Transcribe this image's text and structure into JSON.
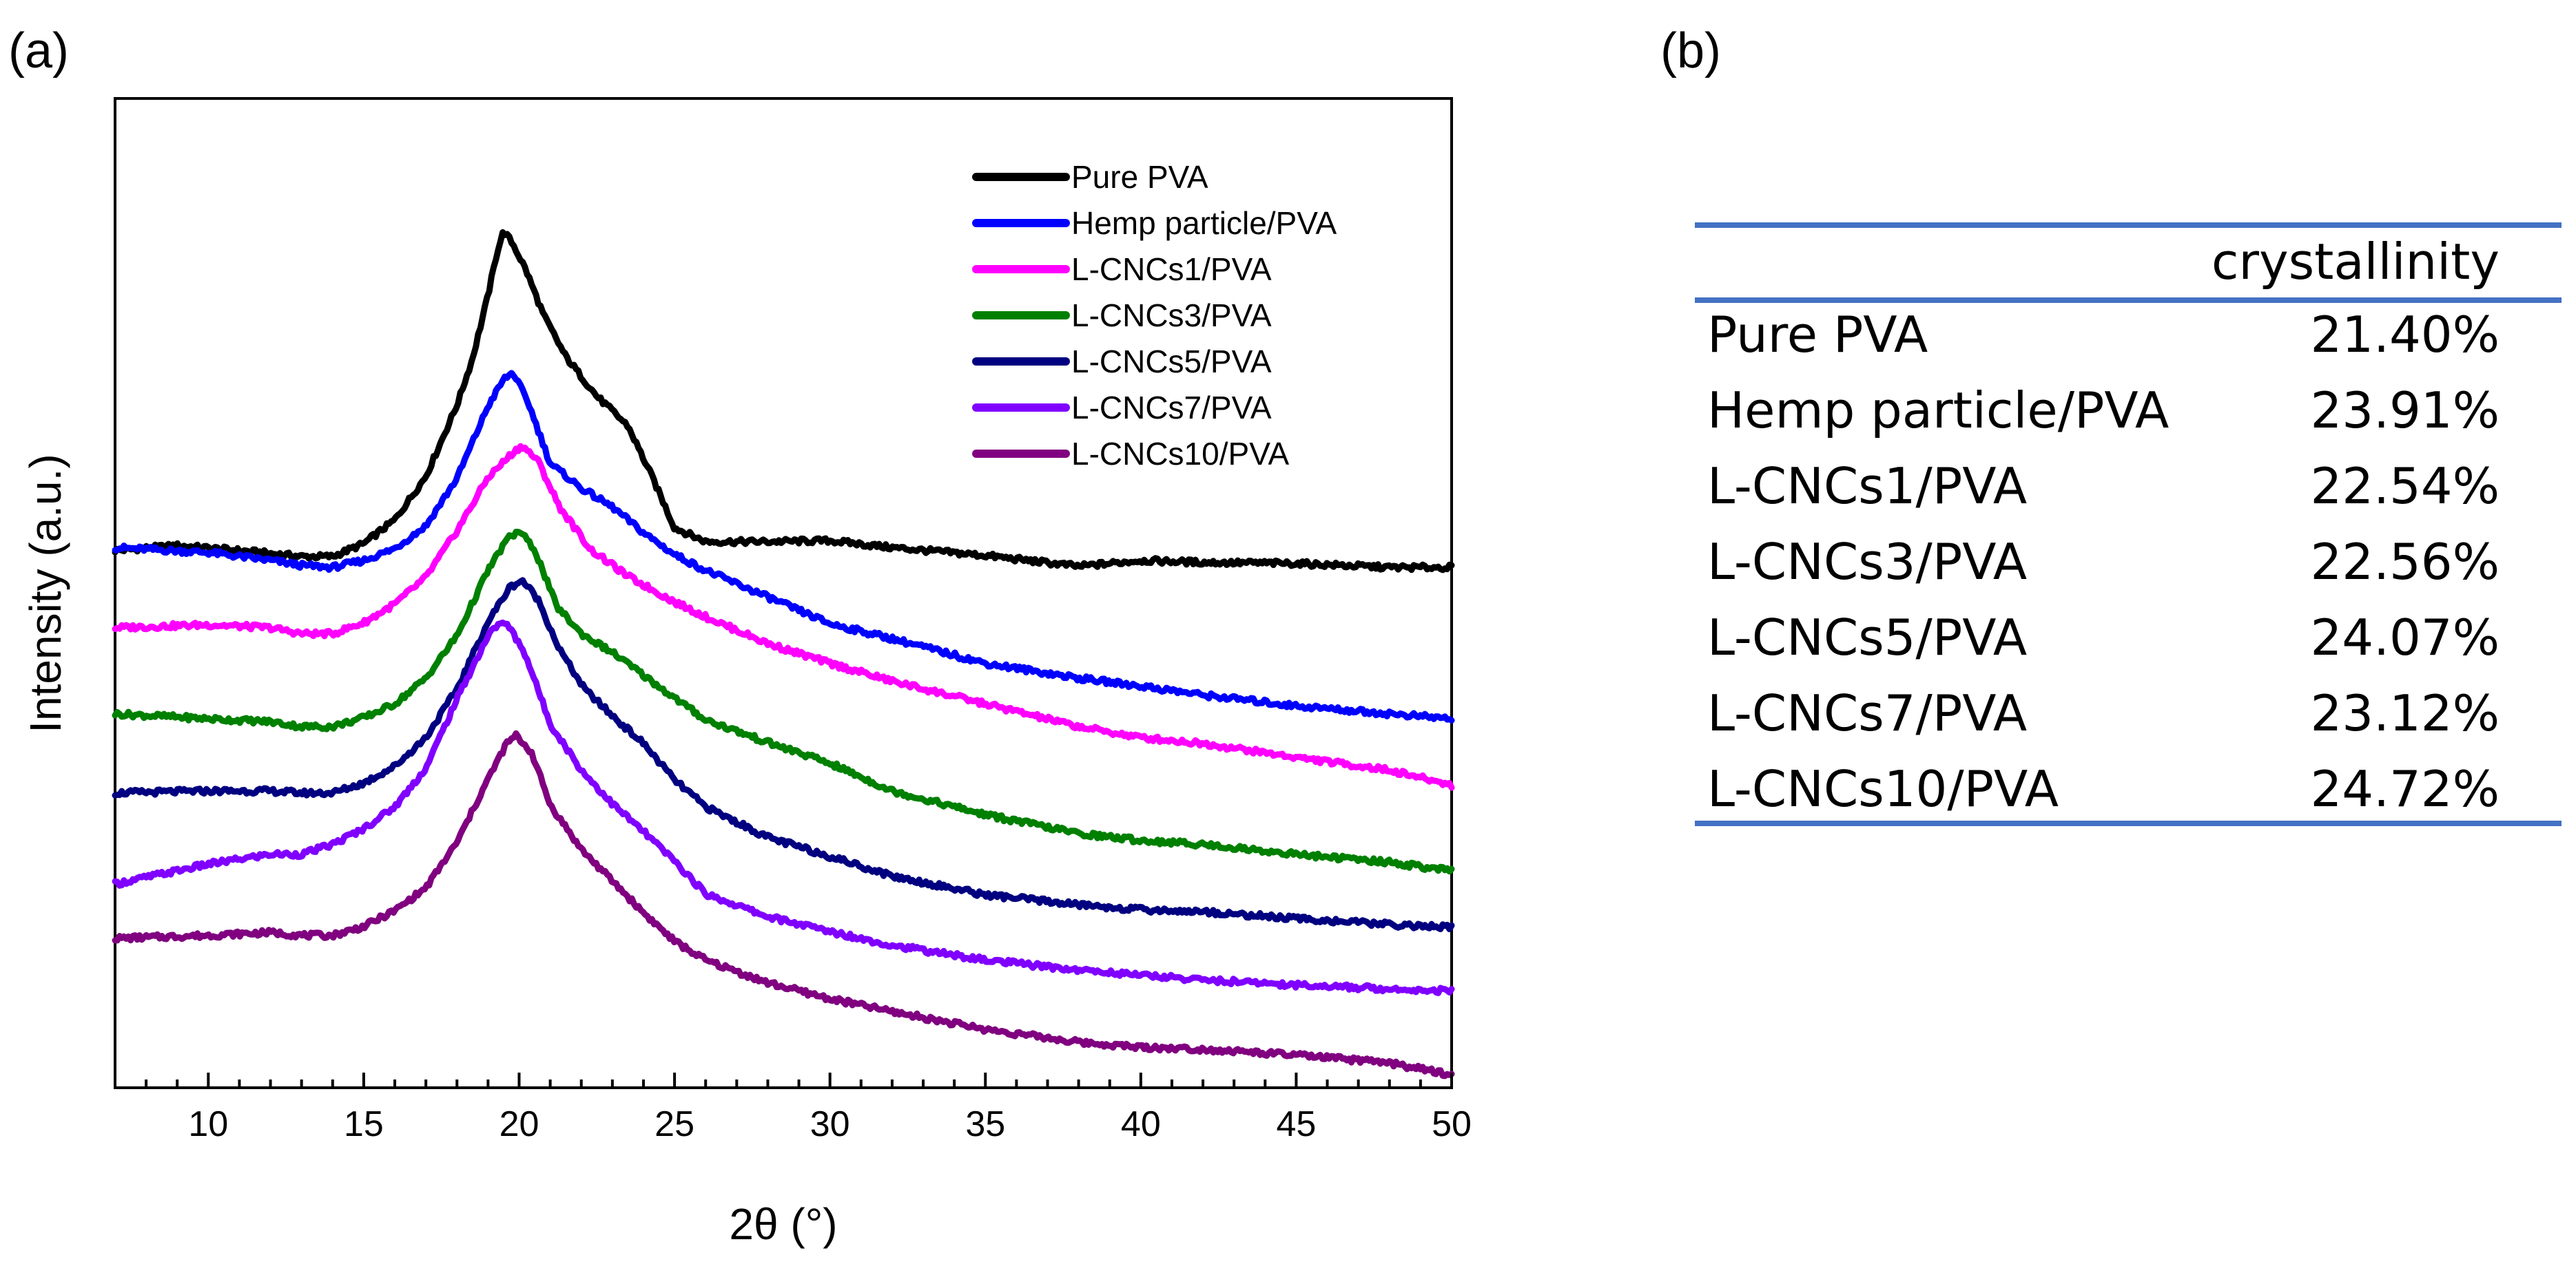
{
  "panels": {
    "a": "(a)",
    "b": "(b)"
  },
  "chart_data": {
    "type": "line",
    "title": "",
    "xlabel": "2θ (°)",
    "ylabel": "Intensity (a.u.)",
    "xlim": [
      7,
      50
    ],
    "ylim": [
      0,
      100
    ],
    "xticks": [
      10,
      15,
      20,
      25,
      30,
      35,
      40,
      45,
      50
    ],
    "legend_position": "top-right",
    "series": [
      {
        "name": "Pure PVA",
        "color": "#000000",
        "x": [
          7,
          9,
          11,
          13,
          14,
          15,
          16,
          17,
          18,
          18.5,
          19,
          19.3,
          19.5,
          19.8,
          20.2,
          20.8,
          21.5,
          22.5,
          23.5,
          24.3,
          25,
          26,
          28,
          30,
          32,
          35,
          38,
          40,
          42,
          45,
          48,
          50
        ],
        "y": [
          54.3,
          54.8,
          54.3,
          53.7,
          53.7,
          55.0,
          57.4,
          61.8,
          69.0,
          73.7,
          80.1,
          84.6,
          86.6,
          85.3,
          82.8,
          78.0,
          73.9,
          69.9,
          66.9,
          61.6,
          56.6,
          55.2,
          55.2,
          55.3,
          54.6,
          53.8,
          52.7,
          53.3,
          53.1,
          53.0,
          52.6,
          52.6
        ]
      },
      {
        "name": "Hemp particle/PVA",
        "color": "#0000FF",
        "x": [
          7,
          10,
          12,
          13,
          14,
          15,
          16,
          17,
          18,
          19,
          19.5,
          19.8,
          20.3,
          21,
          22,
          23,
          24,
          25,
          26,
          28,
          30,
          32,
          35,
          38,
          40,
          42,
          45,
          48,
          50
        ],
        "y": [
          54.6,
          54.1,
          53.3,
          52.8,
          52.6,
          53.3,
          54.5,
          56.8,
          61.6,
          68.9,
          71.6,
          72.3,
          69.2,
          63.1,
          60.6,
          58.7,
          56.1,
          53.9,
          52.3,
          49.6,
          46.9,
          45.4,
          42.9,
          41.4,
          40.6,
          39.7,
          38.6,
          37.8,
          37.3
        ]
      },
      {
        "name": "L-CNCs1/PVA",
        "color": "#FF00FF",
        "x": [
          7,
          10,
          12,
          13,
          14,
          15,
          16,
          17,
          18,
          19,
          19.8,
          20.1,
          20.6,
          21.3,
          22.3,
          23.5,
          25,
          26,
          28,
          30,
          32,
          35,
          38,
          40,
          42,
          45,
          48,
          50
        ],
        "y": [
          46.5,
          46.8,
          46.5,
          45.9,
          45.9,
          47.0,
          48.9,
          51.6,
          56.3,
          61.7,
          64.2,
          64.9,
          63.4,
          58.7,
          54.4,
          51.7,
          49.1,
          47.6,
          44.9,
          42.9,
          41.1,
          38.8,
          36.5,
          35.4,
          34.8,
          33.4,
          32.1,
          30.6
        ]
      },
      {
        "name": "L-CNCs3/PVA",
        "color": "#008000",
        "x": [
          7,
          10,
          12,
          13,
          14,
          15,
          16,
          17,
          18,
          19,
          19.6,
          20,
          20.5,
          21.2,
          22,
          23,
          24,
          25,
          26,
          28,
          30,
          32,
          35,
          38,
          40,
          42,
          45,
          48,
          50
        ],
        "y": [
          37.8,
          37.3,
          37.0,
          36.5,
          36.5,
          37.4,
          38.8,
          41.4,
          45.7,
          52.3,
          55.4,
          56.3,
          54.4,
          48.7,
          45.9,
          44.0,
          41.7,
          39.4,
          37.2,
          34.9,
          32.8,
          30.0,
          27.6,
          25.7,
          25.0,
          24.6,
          23.6,
          22.8,
          21.9
        ]
      },
      {
        "name": "L-CNCs5/PVA",
        "color": "#000080",
        "x": [
          7,
          10,
          12,
          13,
          14,
          15,
          16,
          17,
          18,
          19,
          19.7,
          20.1,
          20.6,
          21.3,
          22.1,
          23,
          24,
          25,
          26,
          28,
          30,
          32,
          35,
          38,
          40,
          42,
          45,
          48,
          50
        ],
        "y": [
          29.8,
          30.0,
          30.0,
          29.8,
          29.8,
          30.8,
          32.5,
          35.4,
          40.3,
          47.1,
          50.6,
          51.3,
          49.4,
          44.3,
          40.3,
          37.6,
          34.8,
          31.1,
          28.4,
          25.3,
          23.4,
          21.4,
          19.5,
          18.5,
          18.0,
          17.8,
          17.1,
          16.5,
          16.2
        ]
      },
      {
        "name": "L-CNCs7/PVA",
        "color": "#8000FF",
        "x": [
          7,
          10,
          12,
          13,
          14,
          15,
          16,
          17,
          18,
          19,
          19.4,
          19.7,
          20.2,
          21,
          22,
          23,
          24,
          25,
          26,
          28,
          30,
          32,
          35,
          38,
          40,
          42,
          45,
          48,
          50
        ],
        "y": [
          20.6,
          22.6,
          23.6,
          23.6,
          24.6,
          26.2,
          28.4,
          32.3,
          39.3,
          45.7,
          47.1,
          46.5,
          43.8,
          36.8,
          32.1,
          28.7,
          25.9,
          22.9,
          19.6,
          17.3,
          15.8,
          14.4,
          12.9,
          11.9,
          11.4,
          10.9,
          10.4,
          10.0,
          9.8
        ]
      },
      {
        "name": "L-CNCs10/PVA",
        "color": "#800080",
        "x": [
          7,
          10,
          12,
          13,
          14,
          15,
          16,
          17,
          18,
          19,
          19.6,
          19.9,
          20.4,
          21,
          22,
          23,
          24,
          25,
          26,
          28,
          30,
          32,
          35,
          38,
          40,
          42,
          45,
          48,
          50
        ],
        "y": [
          15.1,
          15.4,
          15.7,
          15.4,
          15.4,
          16.3,
          17.9,
          20.2,
          24.8,
          31.2,
          34.8,
          35.6,
          33.9,
          28.6,
          24.1,
          20.9,
          17.7,
          14.8,
          12.9,
          10.6,
          9.0,
          7.7,
          5.9,
          4.6,
          4.1,
          3.9,
          3.3,
          2.5,
          1.3
        ]
      }
    ]
  },
  "table": {
    "header": "crystallinity",
    "rows": [
      {
        "label": "Pure PVA",
        "value": "21.40%"
      },
      {
        "label": "Hemp particle/PVA",
        "value": "23.91%"
      },
      {
        "label": "L-CNCs1/PVA",
        "value": "22.54%"
      },
      {
        "label": "L-CNCs3/PVA",
        "value": "22.56%"
      },
      {
        "label": "L-CNCs5/PVA",
        "value": "24.07%"
      },
      {
        "label": "L-CNCs7/PVA",
        "value": "23.12%"
      },
      {
        "label": "L-CNCs10/PVA",
        "value": "24.72%"
      }
    ],
    "rule_color": "#4472C4"
  }
}
